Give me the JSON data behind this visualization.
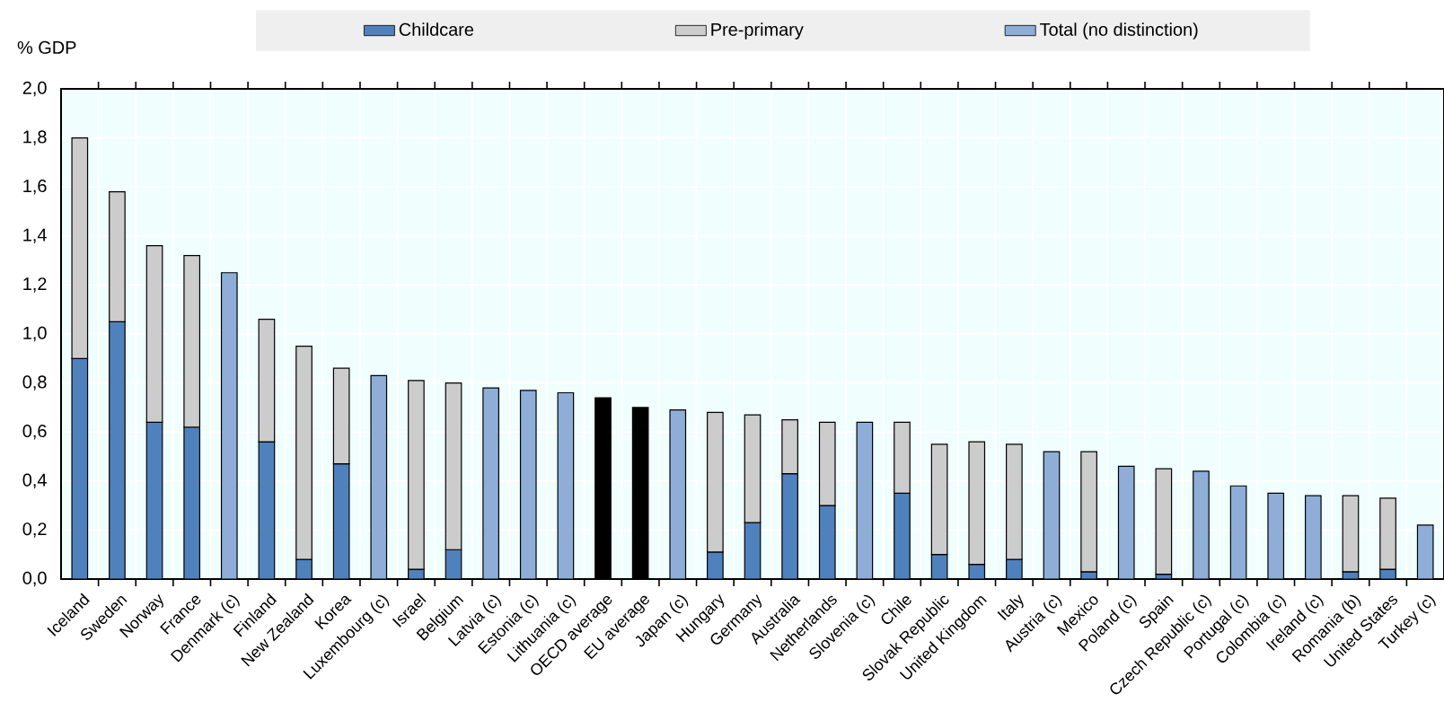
{
  "chart_data": {
    "type": "bar",
    "stacked": true,
    "ylabel": "% GDP",
    "categories": [
      "Iceland",
      "Sweden",
      "Norway",
      "France",
      "Denmark (c)",
      "Finland",
      "New Zealand",
      "Korea",
      "Luxembourg (c)",
      "Israel",
      "Belgium",
      "Latvia (c)",
      "Estonia (c)",
      "Lithuania (c)",
      "OECD average",
      "EU average",
      "Japan (c)",
      "Hungary",
      "Germany",
      "Australia",
      "Netherlands",
      "Slovenia (c)",
      "Chile",
      "Slovak Republic",
      "United Kingdom",
      "Italy",
      "Austria (c)",
      "Mexico",
      "Poland (c)",
      "Spain",
      "Czech Republic (c)",
      "Portugal (c)",
      "Colombia (c)",
      "Ireland (c)",
      "Romania (b)",
      "United States",
      "Turkey (c)"
    ],
    "series": [
      {
        "name": "Childcare",
        "color": "#4f81bd",
        "values": [
          0.9,
          1.05,
          0.64,
          0.62,
          null,
          0.56,
          0.08,
          0.47,
          null,
          0.04,
          0.12,
          null,
          null,
          null,
          null,
          null,
          null,
          0.11,
          0.23,
          0.43,
          0.3,
          null,
          0.35,
          0.1,
          0.06,
          0.08,
          null,
          0.03,
          null,
          0.02,
          null,
          null,
          null,
          null,
          0.03,
          0.04,
          null
        ]
      },
      {
        "name": "Pre-primary",
        "color": "#cccccc",
        "values": [
          0.9,
          0.53,
          0.72,
          0.7,
          null,
          0.5,
          0.87,
          0.39,
          null,
          0.77,
          0.68,
          null,
          null,
          null,
          null,
          null,
          null,
          0.57,
          0.44,
          0.22,
          0.34,
          null,
          0.29,
          0.45,
          0.5,
          0.47,
          null,
          0.49,
          null,
          0.43,
          null,
          null,
          null,
          null,
          0.31,
          0.29,
          null
        ]
      },
      {
        "name": "Total (no distinction)",
        "color": "#8eaed8",
        "values": [
          null,
          null,
          null,
          null,
          1.25,
          null,
          null,
          null,
          0.83,
          null,
          null,
          0.78,
          0.77,
          0.76,
          null,
          null,
          0.69,
          null,
          null,
          null,
          null,
          0.64,
          null,
          null,
          null,
          null,
          0.52,
          null,
          0.46,
          null,
          0.44,
          0.38,
          0.35,
          0.34,
          null,
          null,
          0.22
        ]
      },
      {
        "color": "#000000",
        "values": [
          null,
          null,
          null,
          null,
          null,
          null,
          null,
          null,
          null,
          null,
          null,
          null,
          null,
          null,
          0.74,
          0.7,
          null,
          null,
          null,
          null,
          null,
          null,
          null,
          null,
          null,
          null,
          null,
          null,
          null,
          null,
          null,
          null,
          null,
          null,
          null,
          null,
          null
        ]
      }
    ],
    "ylim": [
      0,
      2
    ],
    "yticks": [
      {
        "value": 0,
        "label": "0,0"
      },
      {
        "value": 0.2,
        "label": "0,2"
      },
      {
        "value": 0.4,
        "label": "0,4"
      },
      {
        "value": 0.6,
        "label": "0,6"
      },
      {
        "value": 0.8,
        "label": "0,8"
      },
      {
        "value": 1,
        "label": "1,0"
      },
      {
        "value": 1.2,
        "label": "1,2"
      },
      {
        "value": 1.4,
        "label": "1,4"
      },
      {
        "value": 1.6,
        "label": "1,6"
      },
      {
        "value": 1.8,
        "label": "1,8"
      },
      {
        "value": 2,
        "label": "2,0"
      }
    ],
    "grid": true,
    "legend": "top"
  }
}
